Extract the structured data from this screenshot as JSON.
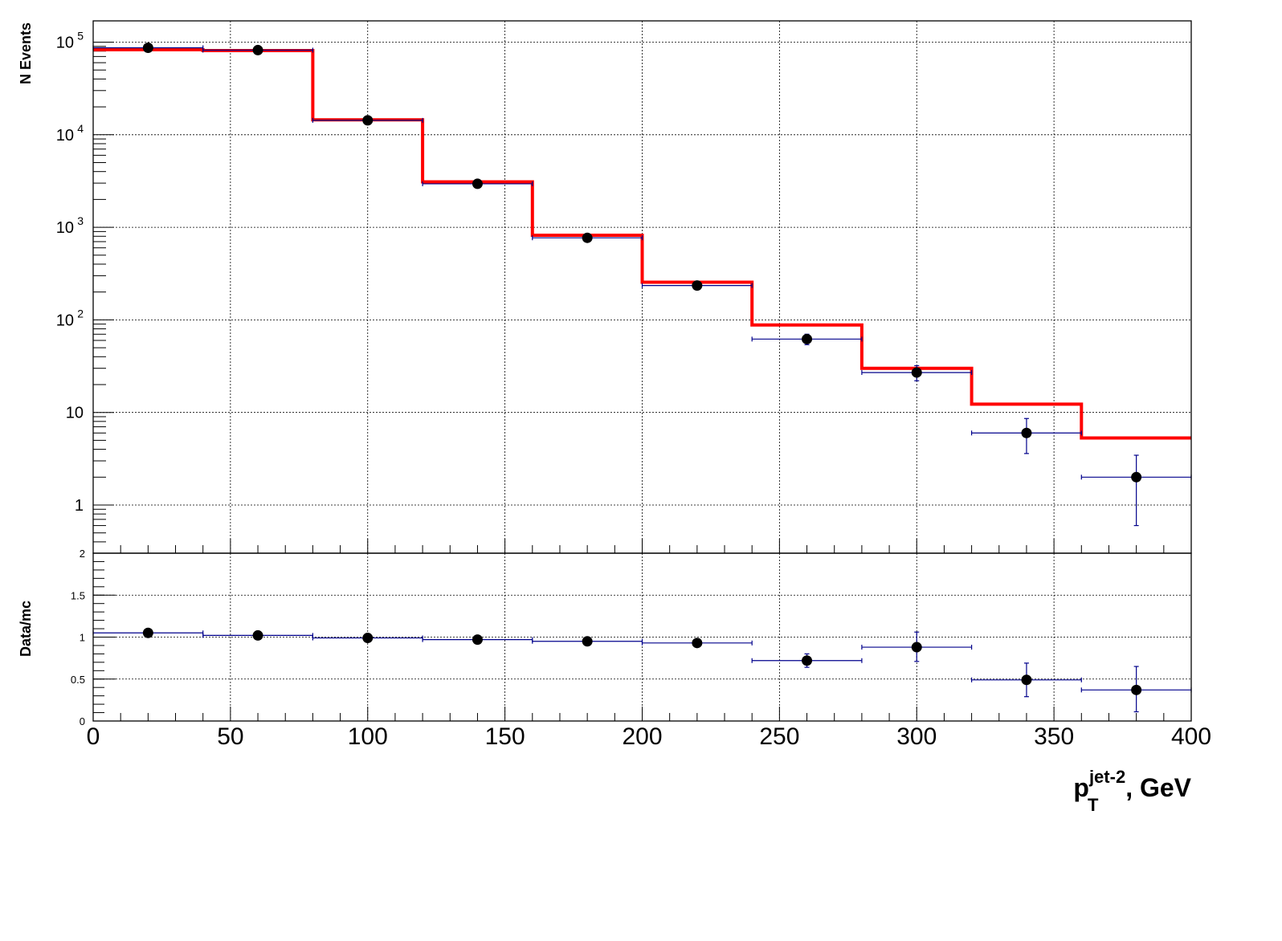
{
  "chart_data": [
    {
      "type": "line",
      "panel": "main",
      "ylabel": "N Events",
      "yscale": "log",
      "xlim": [
        0,
        400
      ],
      "ylim": [
        0.3,
        200000
      ],
      "grid": true,
      "ytick_labels": [
        {
          "value": 100000,
          "base": "10",
          "exp": "5"
        },
        {
          "value": 10000,
          "base": "10",
          "exp": "4"
        },
        {
          "value": 1000,
          "base": "10",
          "exp": "3"
        },
        {
          "value": 100,
          "base": "10",
          "exp": "2"
        },
        {
          "value": 10,
          "base": "10",
          "exp": ""
        },
        {
          "value": 1,
          "base": "1",
          "exp": ""
        }
      ],
      "bin_edges": [
        0,
        40,
        80,
        120,
        160,
        200,
        240,
        280,
        320,
        360,
        400
      ],
      "series": [
        {
          "style": "histogram-step",
          "color": "#ff0000",
          "values": [
            83000,
            81000,
            14500,
            3100,
            820,
            255,
            88,
            30,
            12.3,
            5.3
          ]
        },
        {
          "style": "points-with-errors",
          "color": "#000000",
          "error_color": "#00008b",
          "x": [
            20,
            60,
            100,
            140,
            180,
            220,
            260,
            300,
            340,
            380
          ],
          "values": [
            87000,
            82000,
            14300,
            2950,
            770,
            235,
            62,
            27,
            6,
            2
          ],
          "y_err_low": [
            0,
            0,
            0,
            0,
            0,
            15,
            8,
            5,
            2.4,
            1.4
          ],
          "y_err_high": [
            0,
            0,
            0,
            0,
            0,
            15,
            8,
            5,
            2.6,
            1.45
          ]
        }
      ]
    },
    {
      "type": "scatter",
      "panel": "ratio",
      "ylabel": "Data/mc",
      "xlabel": {
        "base": "p",
        "sub": "T",
        "sup": "jet-2",
        "tail": ", GeV"
      },
      "xlim": [
        0,
        400
      ],
      "ylim": [
        0,
        2
      ],
      "grid": true,
      "x_ticks": [
        "0",
        "50",
        "100",
        "150",
        "200",
        "250",
        "300",
        "350",
        "400"
      ],
      "y_ticks": [
        "0",
        "0.5",
        "1",
        "1.5",
        "2"
      ],
      "series": [
        {
          "style": "points-with-errors",
          "color": "#000000",
          "error_color": "#00008b",
          "x": [
            20,
            60,
            100,
            140,
            180,
            220,
            260,
            300,
            340,
            380
          ],
          "x_halfwidth": 20,
          "values": [
            1.05,
            1.02,
            0.99,
            0.97,
            0.95,
            0.93,
            0.72,
            0.88,
            0.49,
            0.37
          ],
          "y_err_low": [
            0,
            0,
            0,
            0,
            0,
            0.02,
            0.08,
            0.17,
            0.2,
            0.26
          ],
          "y_err_high": [
            0,
            0,
            0,
            0,
            0,
            0.02,
            0.08,
            0.18,
            0.2,
            0.28
          ]
        }
      ]
    }
  ]
}
